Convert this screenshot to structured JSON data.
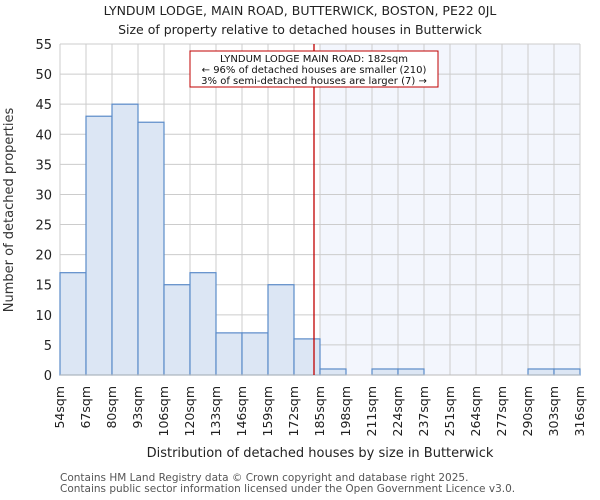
{
  "header": {
    "title": "LYNDUM LODGE, MAIN ROAD, BUTTERWICK, BOSTON, PE22 0JL",
    "subtitle": "Size of property relative to detached houses in Butterwick"
  },
  "annotation": {
    "line1": "LYNDUM LODGE MAIN ROAD: 182sqm",
    "line2": "← 96% of detached houses are smaller (210)",
    "line3": "3% of semi-detached houses are larger (7) →"
  },
  "footer": {
    "line1": "Contains HM Land Registry data © Crown copyright and database right 2025.",
    "line2": "Contains public sector information licensed under the Open Government Licence v3.0."
  },
  "colors": {
    "bar_fill": "#dce6f4",
    "bar_edge": "#5b8bc9",
    "highlight_region": "#f3f6fd",
    "marker_line": "#c00000",
    "grid": "#cccccc"
  },
  "chart_data": {
    "type": "bar",
    "title": "LYNDUM LODGE, MAIN ROAD, BUTTERWICK, BOSTON, PE22 0JL",
    "subtitle": "Size of property relative to detached houses in Butterwick",
    "xlabel": "Distribution of detached houses by size in Butterwick",
    "ylabel": "Number of detached properties",
    "categories": [
      "54sqm",
      "67sqm",
      "80sqm",
      "93sqm",
      "106sqm",
      "120sqm",
      "133sqm",
      "146sqm",
      "159sqm",
      "172sqm",
      "185sqm",
      "198sqm",
      "211sqm",
      "224sqm",
      "237sqm",
      "251sqm",
      "264sqm",
      "277sqm",
      "290sqm",
      "303sqm",
      "316sqm"
    ],
    "values": [
      17,
      43,
      45,
      42,
      15,
      17,
      7,
      7,
      15,
      6,
      1,
      0,
      1,
      1,
      0,
      0,
      0,
      0,
      1,
      1
    ],
    "ylim": [
      0,
      55
    ],
    "yticks": [
      0,
      5,
      10,
      15,
      20,
      25,
      30,
      35,
      40,
      45,
      50,
      55
    ],
    "grid": true,
    "marker": {
      "value_sqm": 182,
      "label": "LYNDUM LODGE MAIN ROAD: 182sqm"
    },
    "annotations": [
      "LYNDUM LODGE MAIN ROAD: 182sqm",
      "← 96% of detached houses are smaller (210)",
      "3% of semi-detached houses are larger (7) →"
    ]
  }
}
